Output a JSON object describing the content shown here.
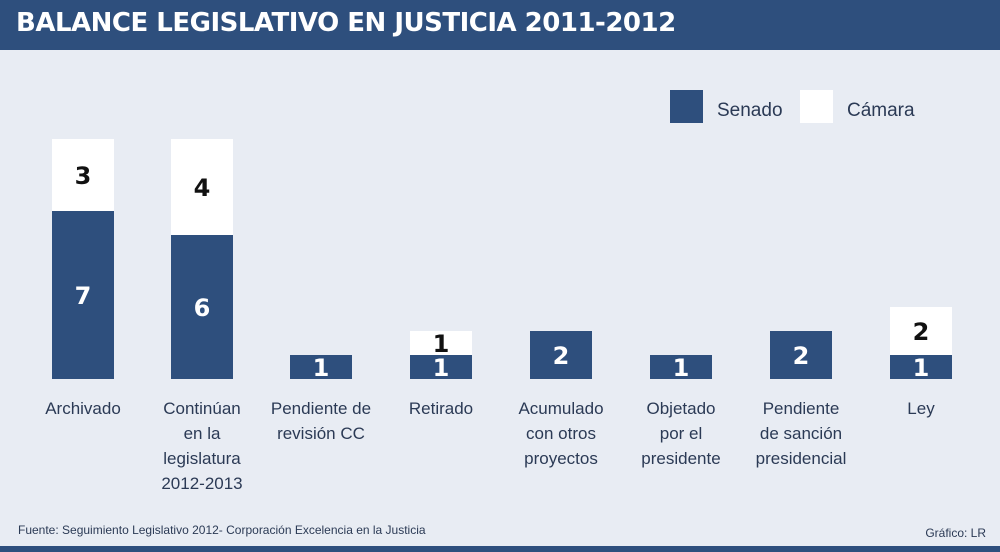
{
  "header": {
    "title": "BALANCE LEGISLATIVO EN JUSTICIA 2011-2012"
  },
  "footer": {
    "source": "Fuente: Seguimiento Legislativo 2012- Corporación Excelencia en la Justicia",
    "credit": "Gráfico: LR"
  },
  "colors": {
    "senado": "#2e4f7d",
    "camara": "#ffffff",
    "background": "#e8ecf3",
    "category_text": "#2b3a55"
  },
  "chart_data": {
    "type": "bar",
    "stacked": true,
    "title": "BALANCE LEGISLATIVO EN JUSTICIA 2011-2012",
    "legend_position": "top-right",
    "categories": [
      [
        "Archivado"
      ],
      [
        "Continúan",
        "en la",
        "legislatura",
        "2012-2013"
      ],
      [
        "Pendiente de",
        "revisión CC"
      ],
      [
        "Retirado"
      ],
      [
        "Acumulado",
        "con otros",
        "proyectos"
      ],
      [
        "Objetado",
        "por el",
        "presidente"
      ],
      [
        "Pendiente",
        "de sanción",
        "presidencial"
      ],
      [
        "Ley"
      ]
    ],
    "series": [
      {
        "name": "Senado",
        "values": [
          7,
          6,
          1,
          1,
          2,
          1,
          2,
          1
        ]
      },
      {
        "name": "Cámara",
        "values": [
          3,
          4,
          0,
          1,
          0,
          0,
          0,
          2
        ]
      }
    ],
    "ylim": [
      0,
      10
    ]
  }
}
